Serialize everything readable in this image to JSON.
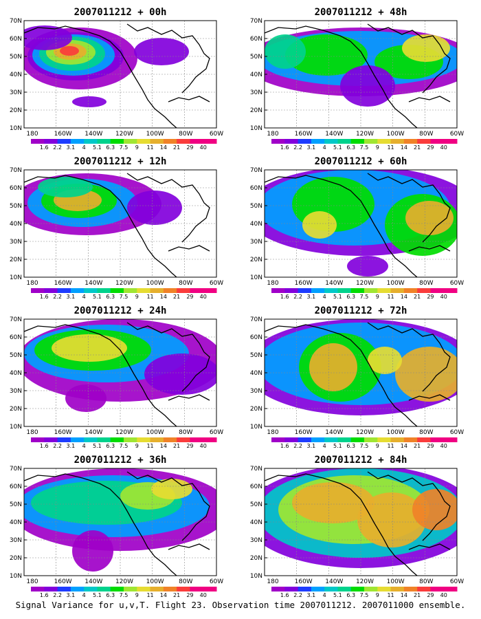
{
  "caption": "Signal Variance for u,v,T. Flight 23. Observation time 2007011212. 2007011000 ensemble.",
  "map": {
    "x_ticks": [
      "180",
      "160W",
      "140W",
      "120W",
      "100W",
      "80W",
      "60W"
    ],
    "y_ticks": [
      "70N",
      "60N",
      "50N",
      "40N",
      "30N",
      "20N",
      "10N"
    ],
    "lon_range": [
      170,
      300
    ],
    "lat_range": [
      10,
      70
    ]
  },
  "colorbar": {
    "labels": [
      "1.6",
      "2.2",
      "3.1",
      "4",
      "5.1",
      "6.3",
      "7.5",
      "9",
      "11",
      "14",
      "21",
      "29",
      "40"
    ],
    "colors": [
      "#a000c8",
      "#8200dc",
      "#1e3cff",
      "#00a0ff",
      "#00c8c8",
      "#00d28c",
      "#00dc00",
      "#a0e632",
      "#e6dc32",
      "#e6af2d",
      "#f08228",
      "#fa3c3c",
      "#f00082"
    ]
  },
  "panels": [
    {
      "title": "2007011212 + 00h"
    },
    {
      "title": "2007011212 + 48h"
    },
    {
      "title": "2007011212 + 12h"
    },
    {
      "title": "2007011212 + 60h"
    },
    {
      "title": "2007011212 + 24h"
    },
    {
      "title": "2007011212 + 72h"
    },
    {
      "title": "2007011212 + 36h"
    },
    {
      "title": "2007011212 + 84h"
    }
  ]
}
